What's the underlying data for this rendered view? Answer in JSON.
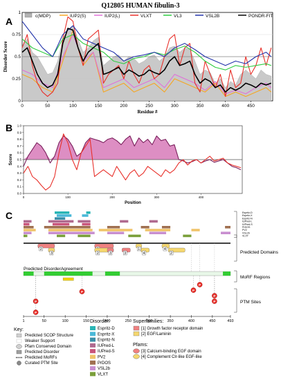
{
  "figure": {
    "panel_labels": [
      "A",
      "B",
      "C"
    ]
  },
  "chart_data": [
    {
      "type": "line",
      "panel": "A",
      "title": "Q12805 HUMAN fibulin-3",
      "xlabel": "Residue #",
      "ylabel": "Disorder Score",
      "xlim": [
        0,
        493
      ],
      "ylim": [
        0,
        1
      ],
      "xticks": [
        "0",
        "50",
        "100",
        "150",
        "200",
        "250",
        "300",
        "350",
        "400",
        "450"
      ],
      "yticks": [
        "0",
        "0.25",
        "0.5",
        "0.75",
        "1"
      ],
      "threshold": 0.5,
      "legend": {
        "placement": "top",
        "entries": [
          {
            "label": "c(MDP)",
            "color": "#b3b3b3"
          },
          {
            "label": "IUP2(S)",
            "color": "#f5a623"
          },
          {
            "label": "IUP2(L)",
            "color": "#e070d8"
          },
          {
            "label": "VLXT",
            "color": "#e8302a"
          },
          {
            "label": "VL3",
            "color": "#2ecc40"
          },
          {
            "label": "VSL2B",
            "color": "#2233aa"
          },
          {
            "label": "PONDR-FIT",
            "color": "#000000"
          }
        ]
      },
      "series": [
        {
          "name": "c(MDP)",
          "color": "#b3b3b3",
          "area": true,
          "x": [
            0,
            10,
            20,
            30,
            40,
            50,
            60,
            70,
            80,
            90,
            100,
            110,
            120,
            130,
            140,
            150,
            160,
            170,
            180,
            190,
            200,
            210,
            220,
            230,
            240,
            250,
            260,
            270,
            280,
            290,
            300,
            310,
            320,
            330,
            340,
            350,
            360,
            370,
            380,
            390,
            400,
            410,
            420,
            430,
            440,
            450,
            460,
            470,
            480,
            490
          ],
          "y": [
            0.62,
            0.7,
            0.55,
            0.5,
            0.4,
            0.3,
            0.32,
            0.45,
            0.7,
            0.8,
            0.85,
            0.7,
            0.55,
            0.6,
            0.68,
            0.72,
            0.4,
            0.45,
            0.5,
            0.52,
            0.45,
            0.5,
            0.48,
            0.42,
            0.45,
            0.5,
            0.52,
            0.45,
            0.5,
            0.6,
            0.62,
            0.55,
            0.6,
            0.58,
            0.45,
            0.3,
            0.35,
            0.32,
            0.2,
            0.25,
            0.15,
            0.22,
            0.18,
            0.3,
            0.35,
            0.3,
            0.25,
            0.35,
            0.3,
            0.28
          ]
        },
        {
          "name": "IUP2(S)",
          "color": "#f5a623",
          "x": [
            0,
            20,
            40,
            60,
            80,
            100,
            120,
            140,
            160,
            180,
            200,
            220,
            240,
            260,
            280,
            300,
            320,
            340,
            360,
            380,
            400,
            420,
            440,
            460,
            480,
            490
          ],
          "y": [
            0.3,
            0.25,
            0.15,
            0.1,
            0.45,
            0.8,
            0.4,
            0.55,
            0.1,
            0.15,
            0.2,
            0.1,
            0.15,
            0.2,
            0.1,
            0.25,
            0.2,
            0.15,
            0.1,
            0.2,
            0.05,
            0.1,
            0.05,
            0.1,
            0.15,
            0.1
          ]
        },
        {
          "name": "IUP2(L)",
          "color": "#e070d8",
          "x": [
            0,
            20,
            40,
            60,
            80,
            100,
            120,
            140,
            160,
            180,
            200,
            220,
            240,
            260,
            280,
            300,
            320,
            340,
            360,
            380,
            400,
            420,
            440,
            460,
            480,
            490
          ],
          "y": [
            0.35,
            0.3,
            0.2,
            0.15,
            0.5,
            0.75,
            0.45,
            0.55,
            0.15,
            0.2,
            0.25,
            0.15,
            0.2,
            0.25,
            0.15,
            0.3,
            0.25,
            0.2,
            0.12,
            0.22,
            0.08,
            0.12,
            0.08,
            0.15,
            0.2,
            0.15
          ]
        },
        {
          "name": "VLXT",
          "color": "#e8302a",
          "x": [
            0,
            10,
            20,
            30,
            40,
            50,
            60,
            70,
            80,
            90,
            100,
            110,
            120,
            130,
            140,
            150,
            160,
            170,
            180,
            190,
            200,
            210,
            220,
            230,
            240,
            250,
            260,
            270,
            280,
            290,
            300,
            310,
            320,
            330,
            340,
            350,
            360,
            370,
            380,
            390,
            400,
            410,
            420,
            430,
            440,
            450,
            460,
            470,
            480,
            490
          ],
          "y": [
            0.6,
            0.75,
            0.4,
            0.2,
            0.1,
            0.05,
            0.1,
            0.2,
            0.7,
            0.95,
            0.9,
            0.6,
            0.4,
            0.7,
            0.75,
            0.8,
            0.2,
            0.3,
            0.35,
            0.4,
            0.25,
            0.45,
            0.3,
            0.2,
            0.35,
            0.4,
            0.25,
            0.3,
            0.5,
            0.7,
            0.75,
            0.4,
            0.6,
            0.65,
            0.2,
            0.1,
            0.45,
            0.3,
            0.15,
            0.3,
            0.05,
            0.35,
            0.15,
            0.2,
            0.5,
            0.3,
            0.4,
            0.6,
            0.4,
            0.6
          ]
        },
        {
          "name": "VL3",
          "color": "#2ecc40",
          "x": [
            0,
            20,
            40,
            60,
            80,
            100,
            120,
            140,
            160,
            180,
            200,
            220,
            240,
            260,
            280,
            300,
            320,
            340,
            360,
            380,
            400,
            420,
            440,
            460,
            480,
            490
          ],
          "y": [
            0.7,
            0.6,
            0.55,
            0.5,
            0.7,
            0.75,
            0.65,
            0.6,
            0.55,
            0.45,
            0.42,
            0.48,
            0.5,
            0.55,
            0.52,
            0.58,
            0.62,
            0.55,
            0.45,
            0.38,
            0.35,
            0.4,
            0.38,
            0.4,
            0.42,
            0.4
          ]
        },
        {
          "name": "VSL2B",
          "color": "#2233aa",
          "x": [
            0,
            20,
            40,
            60,
            80,
            100,
            120,
            140,
            160,
            180,
            200,
            220,
            240,
            260,
            280,
            300,
            320,
            340,
            360,
            380,
            400,
            420,
            440,
            460,
            480,
            490
          ],
          "y": [
            0.9,
            0.75,
            0.6,
            0.5,
            0.75,
            0.85,
            0.7,
            0.65,
            0.6,
            0.55,
            0.45,
            0.5,
            0.52,
            0.55,
            0.5,
            0.6,
            0.65,
            0.58,
            0.5,
            0.45,
            0.4,
            0.45,
            0.42,
            0.5,
            0.55,
            0.5
          ]
        },
        {
          "name": "PONDR-FIT",
          "color": "#000000",
          "x": [
            0,
            10,
            20,
            30,
            40,
            50,
            60,
            70,
            80,
            90,
            100,
            110,
            120,
            130,
            140,
            150,
            160,
            170,
            180,
            190,
            200,
            210,
            220,
            230,
            240,
            250,
            260,
            270,
            280,
            290,
            300,
            310,
            320,
            330,
            340,
            350,
            360,
            370,
            380,
            390,
            400,
            410,
            420,
            430,
            440,
            450,
            460,
            470,
            480,
            490
          ],
          "y": [
            0.55,
            0.6,
            0.45,
            0.3,
            0.2,
            0.15,
            0.18,
            0.3,
            0.65,
            0.82,
            0.8,
            0.6,
            0.45,
            0.55,
            0.6,
            0.65,
            0.3,
            0.32,
            0.35,
            0.38,
            0.3,
            0.35,
            0.32,
            0.28,
            0.3,
            0.35,
            0.32,
            0.3,
            0.35,
            0.45,
            0.5,
            0.4,
            0.42,
            0.45,
            0.3,
            0.2,
            0.25,
            0.22,
            0.15,
            0.18,
            0.1,
            0.15,
            0.12,
            0.15,
            0.2,
            0.18,
            0.15,
            0.2,
            0.18,
            0.2
          ]
        }
      ]
    },
    {
      "type": "line",
      "panel": "B",
      "xlabel": "Position",
      "ylabel": "Score",
      "xlim": [
        0,
        493
      ],
      "ylim": [
        0,
        1
      ],
      "xticks": [
        "0",
        "100",
        "200",
        "300",
        "400"
      ],
      "yticks": [
        "0.0",
        "0.1",
        "0.2",
        "0.3",
        "0.4",
        "0.5",
        "0.6",
        "0.7",
        "0.8",
        "0.9",
        "1.0"
      ],
      "threshold": 0.5,
      "series": [
        {
          "name": "",
          "color": "#7a1f5c",
          "fill": "#d77ab8",
          "x": [
            0,
            10,
            20,
            30,
            40,
            50,
            60,
            70,
            80,
            90,
            100,
            110,
            120,
            130,
            140,
            150,
            160,
            170,
            180,
            190,
            200,
            210,
            220,
            230,
            240,
            250,
            260,
            270,
            280,
            290,
            300,
            310,
            320,
            330,
            340,
            350,
            360,
            370,
            380,
            390,
            400,
            410,
            420,
            430,
            440,
            450,
            460,
            470,
            480,
            490
          ],
          "y": [
            0.4,
            0.55,
            0.65,
            0.75,
            0.7,
            0.6,
            0.45,
            0.55,
            0.75,
            0.85,
            0.8,
            0.7,
            0.55,
            0.6,
            0.75,
            0.82,
            0.8,
            0.78,
            0.75,
            0.8,
            0.82,
            0.78,
            0.72,
            0.8,
            0.85,
            0.7,
            0.82,
            0.75,
            0.8,
            0.72,
            0.85,
            0.78,
            0.8,
            0.7,
            0.72,
            0.5,
            0.48,
            0.45,
            0.47,
            0.5,
            0.45,
            0.48,
            0.5,
            0.46,
            0.48,
            0.5,
            0.45,
            0.4,
            0.38,
            0.35
          ]
        },
        {
          "name": "",
          "color": "#e8302a",
          "x": [
            0,
            10,
            20,
            30,
            40,
            50,
            60,
            70,
            80,
            90,
            100,
            110,
            120,
            130,
            140,
            150,
            160,
            170,
            180,
            190,
            200,
            210,
            220,
            230,
            240,
            250,
            260,
            270,
            280,
            290,
            300,
            310,
            320,
            330,
            340,
            350,
            360,
            370,
            380,
            390,
            400,
            410,
            420,
            430,
            440,
            450,
            460,
            470,
            480,
            490
          ],
          "y": [
            0.3,
            0.4,
            0.25,
            0.2,
            0.12,
            0.05,
            0.1,
            0.25,
            0.6,
            0.88,
            0.75,
            0.5,
            0.35,
            0.6,
            0.7,
            0.8,
            0.25,
            0.3,
            0.35,
            0.3,
            0.25,
            0.4,
            0.3,
            0.2,
            0.3,
            0.35,
            0.25,
            0.3,
            0.4,
            0.35,
            0.3,
            0.25,
            0.35,
            0.3,
            0.35,
            0.45,
            0.5,
            0.42,
            0.48,
            0.5,
            0.45,
            0.5,
            0.55,
            0.48,
            0.5,
            0.52,
            0.45,
            0.42,
            0.4,
            0.38
          ]
        }
      ]
    },
    {
      "type": "diagram",
      "panel": "C",
      "xlim": [
        1,
        493
      ],
      "xticks": [
        "1",
        "50",
        "100",
        "150",
        "200",
        "250",
        "300",
        "350",
        "400",
        "450",
        "493"
      ],
      "track_labels": [
        "Espritz-D",
        "Espritz-X",
        "Espritz-N",
        "IUPred-L",
        "IUPred-S",
        "PrDOS",
        "PV2",
        "VSL2b",
        "VLXT"
      ],
      "section_labels": [
        "Predicted Domains",
        "MoRF Regions",
        "PTM Sites"
      ],
      "agreement_label": "Predicted DisorderAgreement",
      "domains": [
        {
          "label": "2",
          "start": 35,
          "end": 75,
          "color": "#f08080"
        },
        {
          "label": "3",
          "start": 60,
          "end": 75,
          "color": "#f5d76e"
        },
        {
          "label": "2",
          "start": 170,
          "end": 215,
          "color": "#f08080"
        },
        {
          "label": "2",
          "start": 170,
          "end": 215,
          "color": "#f5d76e"
        },
        {
          "label": "3",
          "start": 200,
          "end": 215,
          "color": "#f08080"
        },
        {
          "label": "3",
          "start": 235,
          "end": 255,
          "color": "#f08080"
        },
        {
          "label": "1",
          "start": 268,
          "end": 282,
          "color": "#f5d76e"
        },
        {
          "label": "4",
          "start": 280,
          "end": 300,
          "color": "#f5d76e"
        },
        {
          "label": "4",
          "start": 330,
          "end": 348,
          "color": "#f5d76e"
        },
        {
          "label": "2",
          "start": 345,
          "end": 385,
          "color": "#f5d76e"
        }
      ],
      "ptm_sites": [
        "P",
        "P",
        "P",
        "P",
        "P",
        "P",
        "P"
      ],
      "tick_axis_labels": [
        "1",
        "50",
        "100",
        "150",
        "200",
        "250",
        "300",
        "350",
        "400",
        "450",
        "493"
      ]
    }
  ],
  "key": {
    "title": "Key:",
    "items": [
      "Predicted SCOP Structure",
      "Weaker Support",
      "Pfam Conserved Domain",
      "Predicted Disorder",
      "Predicted MoRFs",
      "Curated PTM Site"
    ]
  },
  "disorder_key": {
    "title": "Disorder:",
    "items": [
      {
        "label": "Espritz-D",
        "color": "#2ab5b5"
      },
      {
        "label": "Espritz-X",
        "color": "#49b8d8"
      },
      {
        "label": "Espritz-N",
        "color": "#3b8fa8"
      },
      {
        "label": "IUPred-L",
        "color": "#b06a8f"
      },
      {
        "label": "IUPred-S",
        "color": "#c9547a"
      },
      {
        "label": "PV2",
        "color": "#f0c46a"
      },
      {
        "label": "PrDOS",
        "color": "#a07050"
      },
      {
        "label": "VSL2b",
        "color": "#c88fd0"
      },
      {
        "label": "VLXT",
        "color": "#7a9f3a"
      }
    ]
  },
  "superfamilies": {
    "title": "Superfamilies:",
    "items": [
      {
        "label": "[1] Growth factor receptor domain",
        "color": "#f08080"
      },
      {
        "label": "[2] EGF/Laminin",
        "color": "#f5d76e"
      }
    ]
  },
  "pfams": {
    "title": "Pfams:",
    "items": [
      {
        "label": "[3] Calcium-binding EGF domain",
        "color": "#f08080"
      },
      {
        "label": "[4] Complement Clr-like EGF-like",
        "color": "#f5d76e"
      }
    ]
  }
}
